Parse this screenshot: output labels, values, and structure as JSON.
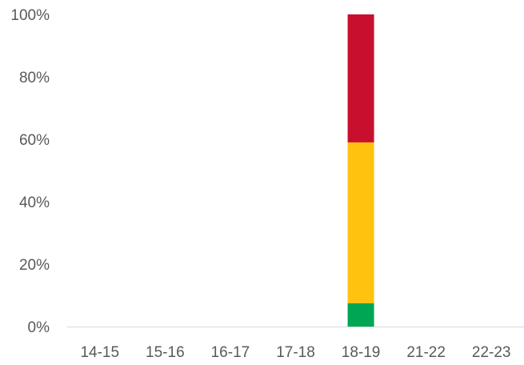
{
  "chart_data": {
    "type": "bar",
    "stacked": true,
    "categories": [
      "14-15",
      "15-16",
      "16-17",
      "17-18",
      "18-19",
      "21-22",
      "22-23"
    ],
    "series": [
      {
        "color": "#00A651",
        "values": [
          0,
          0,
          0,
          0,
          7.5,
          0,
          0
        ]
      },
      {
        "color": "#FFC20E",
        "values": [
          0,
          0,
          0,
          0,
          51.5,
          0,
          0
        ]
      },
      {
        "color": "#C8102E",
        "values": [
          0,
          0,
          0,
          0,
          41,
          0,
          0
        ]
      }
    ],
    "ylim": [
      0,
      100
    ],
    "y_ticks": [
      0,
      20,
      40,
      60,
      80,
      100
    ],
    "y_tick_format": "{v}%",
    "title": "",
    "xlabel": "",
    "ylabel": "",
    "grid": false,
    "legend": "none"
  }
}
